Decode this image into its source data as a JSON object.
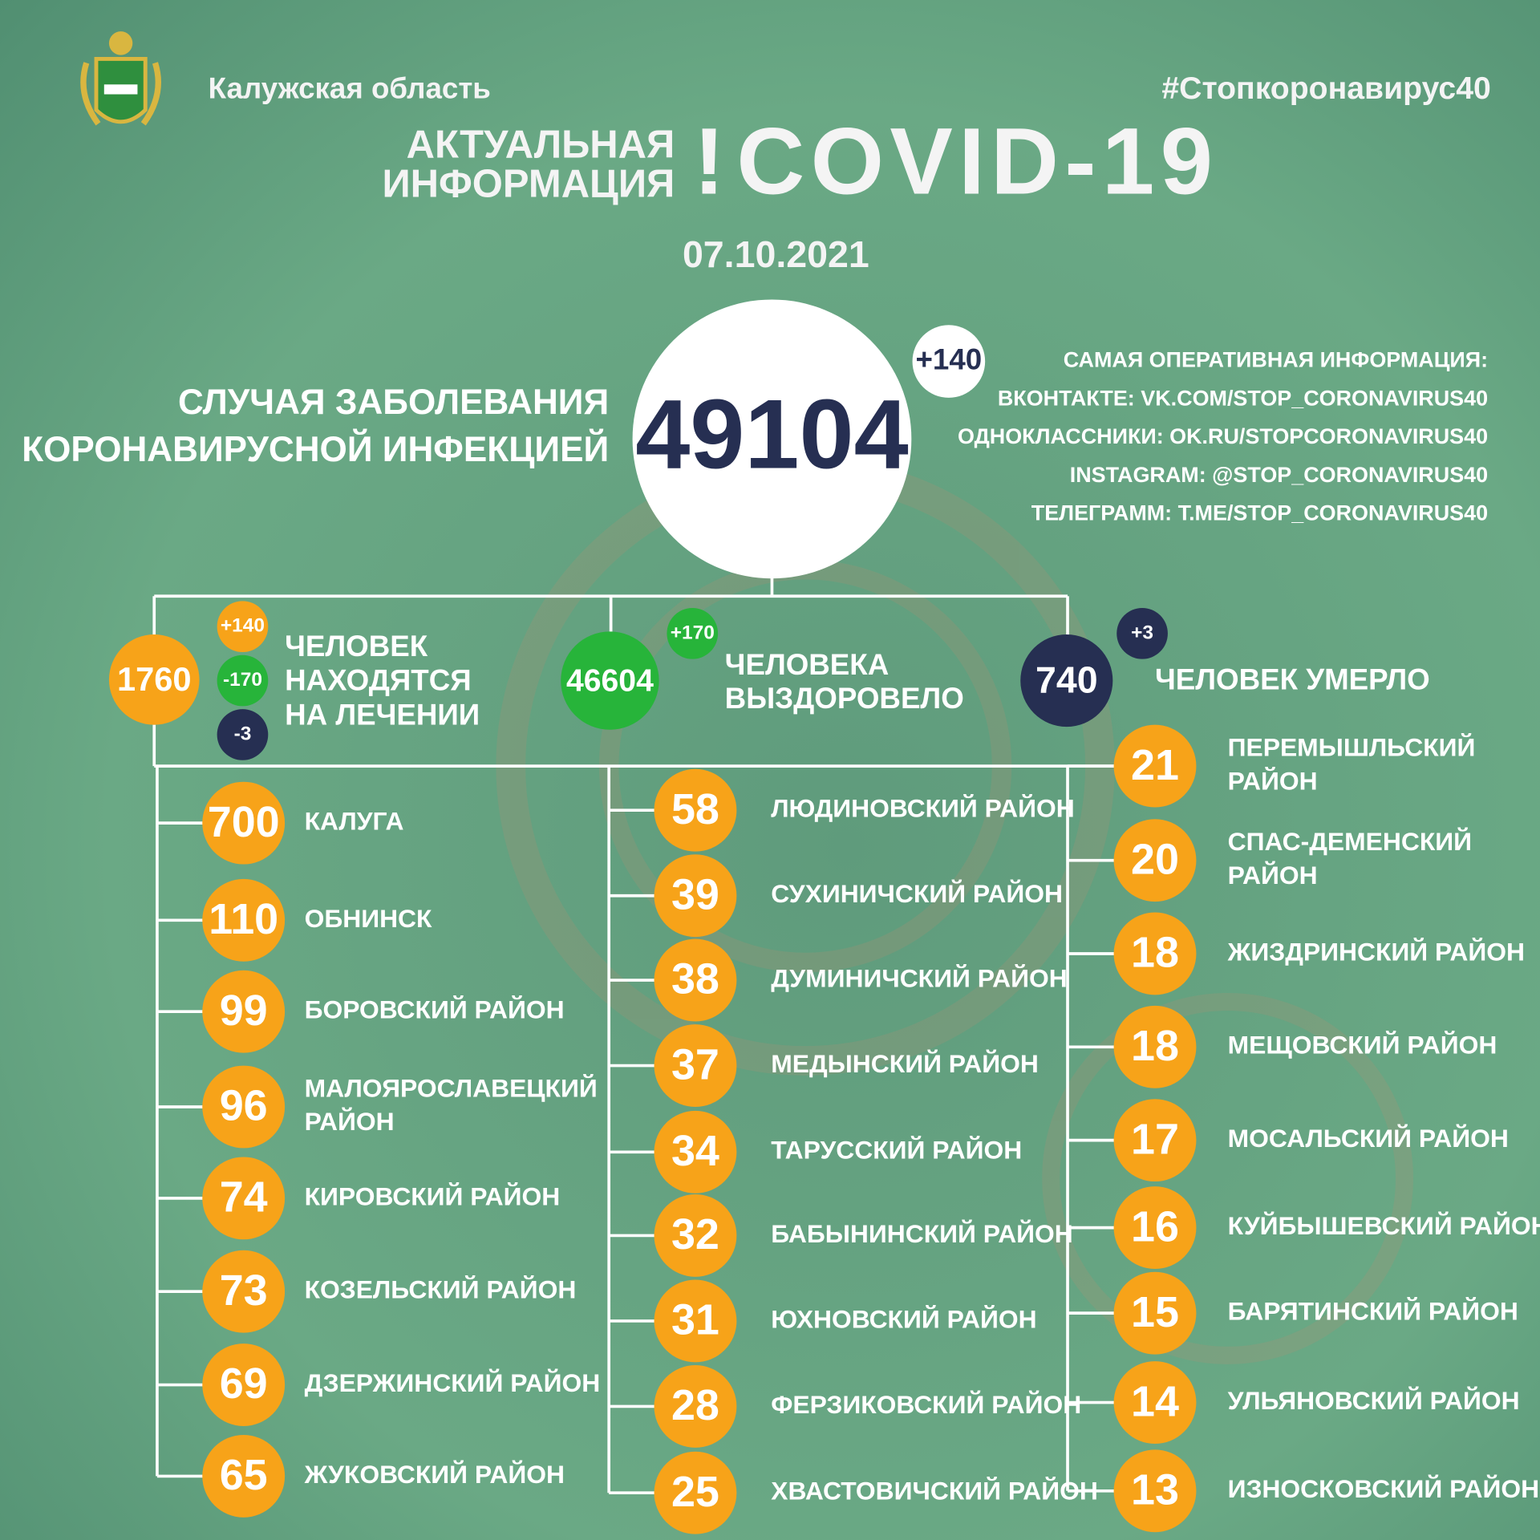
{
  "header": {
    "region": "Калужская область",
    "hashtag": "#Стопкоронавирус40",
    "title_lines": [
      "АКТУАЛЬНАЯ",
      "ИНФОРМАЦИЯ"
    ],
    "exclamation": "!",
    "title_main": "COVID-19",
    "date": "07.10.2021"
  },
  "total": {
    "value": "49104",
    "delta": "+140",
    "label_lines": [
      "СЛУЧАЯ ЗАБОЛЕВАНИЯ",
      "КОРОНАВИРУСНОЙ ИНФЕКЦИЕЙ"
    ]
  },
  "info_lines": [
    "САМАЯ ОПЕРАТИВНАЯ ИНФОРМАЦИЯ:",
    "ВКОНТАКТЕ: VK.COM/STOP_CORONAVIRUS40",
    "ОДНОКЛАССНИКИ: OK.RU/STOPCORONAVIRUS40",
    "INSTAGRAM: @STOP_CORONAVIRUS40",
    "ТЕЛЕГРАММ: T.ME/STOP_CORONAVIRUS40"
  ],
  "treatment": {
    "value": "1760",
    "deltas": [
      "+140",
      "-170",
      "-3"
    ],
    "label_lines": [
      "ЧЕЛОВЕК",
      "НАХОДЯТСЯ",
      "НА ЛЕЧЕНИИ"
    ]
  },
  "recovered": {
    "value": "46604",
    "delta": "+170",
    "label_lines": [
      "ЧЕЛОВЕКА",
      "ВЫЗДОРОВЕЛО"
    ]
  },
  "deaths": {
    "value": "740",
    "delta": "+3",
    "label_lines": [
      "ЧЕЛОВЕК УМЕРЛО"
    ]
  },
  "districts": [
    [
      {
        "value": "700",
        "label": [
          "КАЛУГА"
        ]
      },
      {
        "value": "110",
        "label": [
          "ОБНИНСК"
        ]
      },
      {
        "value": "99",
        "label": [
          "БОРОВСКИЙ РАЙОН"
        ]
      },
      {
        "value": "96",
        "label": [
          "МАЛОЯРОСЛАВЕЦКИЙ",
          "РАЙОН"
        ]
      },
      {
        "value": "74",
        "label": [
          "КИРОВСКИЙ РАЙОН"
        ]
      },
      {
        "value": "73",
        "label": [
          "КОЗЕЛЬСКИЙ РАЙОН"
        ]
      },
      {
        "value": "69",
        "label": [
          "ДЗЕРЖИНСКИЙ РАЙОН"
        ]
      },
      {
        "value": "65",
        "label": [
          "ЖУКОВСКИЙ РАЙОН"
        ]
      }
    ],
    [
      {
        "value": "58",
        "label": [
          "ЛЮДИНОВСКИЙ РАЙОН"
        ]
      },
      {
        "value": "39",
        "label": [
          "СУХИНИЧСКИЙ РАЙОН"
        ]
      },
      {
        "value": "38",
        "label": [
          "ДУМИНИЧСКИЙ РАЙОН"
        ]
      },
      {
        "value": "37",
        "label": [
          "МЕДЫНСКИЙ РАЙОН"
        ]
      },
      {
        "value": "34",
        "label": [
          "ТАРУССКИЙ РАЙОН"
        ]
      },
      {
        "value": "32",
        "label": [
          "БАБЫНИНСКИЙ РАЙОН"
        ]
      },
      {
        "value": "31",
        "label": [
          "ЮХНОВСКИЙ РАЙОН"
        ]
      },
      {
        "value": "28",
        "label": [
          "ФЕРЗИКОВСКИЙ РАЙОН"
        ]
      },
      {
        "value": "25",
        "label": [
          "ХВАСТОВИЧСКИЙ РАЙОН"
        ]
      }
    ],
    [
      {
        "value": "21",
        "label": [
          "ПЕРЕМЫШЛЬСКИЙ",
          "РАЙОН"
        ]
      },
      {
        "value": "20",
        "label": [
          "СПАС-ДЕМЕНСКИЙ",
          "РАЙОН"
        ]
      },
      {
        "value": "18",
        "label": [
          "ЖИЗДРИНСКИЙ РАЙОН"
        ]
      },
      {
        "value": "18",
        "label": [
          "МЕЩОВСКИЙ РАЙОН"
        ]
      },
      {
        "value": "17",
        "label": [
          "МОСАЛЬСКИЙ РАЙОН"
        ]
      },
      {
        "value": "16",
        "label": [
          "КУЙБЫШЕВСКИЙ РАЙОН"
        ]
      },
      {
        "value": "15",
        "label": [
          "БАРЯТИНСКИЙ РАЙОН"
        ]
      },
      {
        "value": "14",
        "label": [
          "УЛЬЯНОВСКИЙ РАЙОН"
        ]
      },
      {
        "value": "13",
        "label": [
          "ИЗНОСКОВСКИЙ РАЙОН"
        ]
      }
    ]
  ]
}
